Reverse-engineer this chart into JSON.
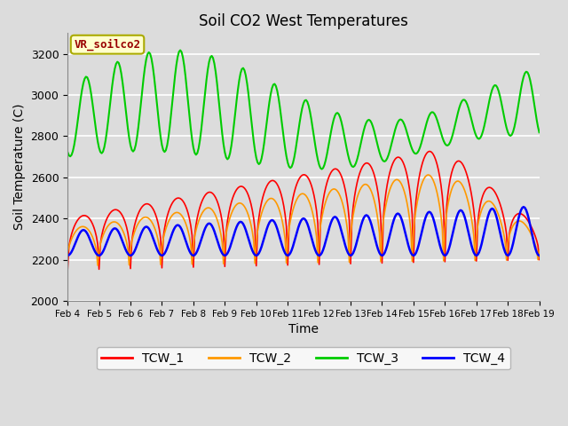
{
  "title": "Soil CO2 West Temperatures",
  "xlabel": "Time",
  "ylabel": "Soil Temperature (C)",
  "ylim": [
    2000,
    3300
  ],
  "xlim": [
    0,
    360
  ],
  "background_color": "#dcdcdc",
  "plot_bg_color": "#dcdcdc",
  "annotation_text": "VR_soilco2",
  "annotation_bg": "#ffffcc",
  "annotation_border": "#aaaa00",
  "annotation_fg": "#990000",
  "colors": {
    "TCW_1": "#ff0000",
    "TCW_2": "#ff9900",
    "TCW_3": "#00cc00",
    "TCW_4": "#0000ff"
  },
  "x_tick_labels": [
    "Feb 4",
    "Feb 5",
    "Feb 6",
    "Feb 7",
    "Feb 8",
    "Feb 9",
    "Feb 10",
    "Feb 11",
    "Feb 12",
    "Feb 13",
    "Feb 14",
    "Feb 15",
    "Feb 16",
    "Feb 17",
    "Feb 18",
    "Feb 19"
  ],
  "x_tick_positions": [
    0,
    24,
    48,
    72,
    96,
    120,
    144,
    168,
    192,
    216,
    240,
    264,
    288,
    312,
    336,
    360
  ],
  "y_ticks": [
    2000,
    2200,
    2400,
    2600,
    2800,
    3000,
    3200
  ],
  "figsize": [
    6.4,
    4.8
  ],
  "dpi": 100
}
